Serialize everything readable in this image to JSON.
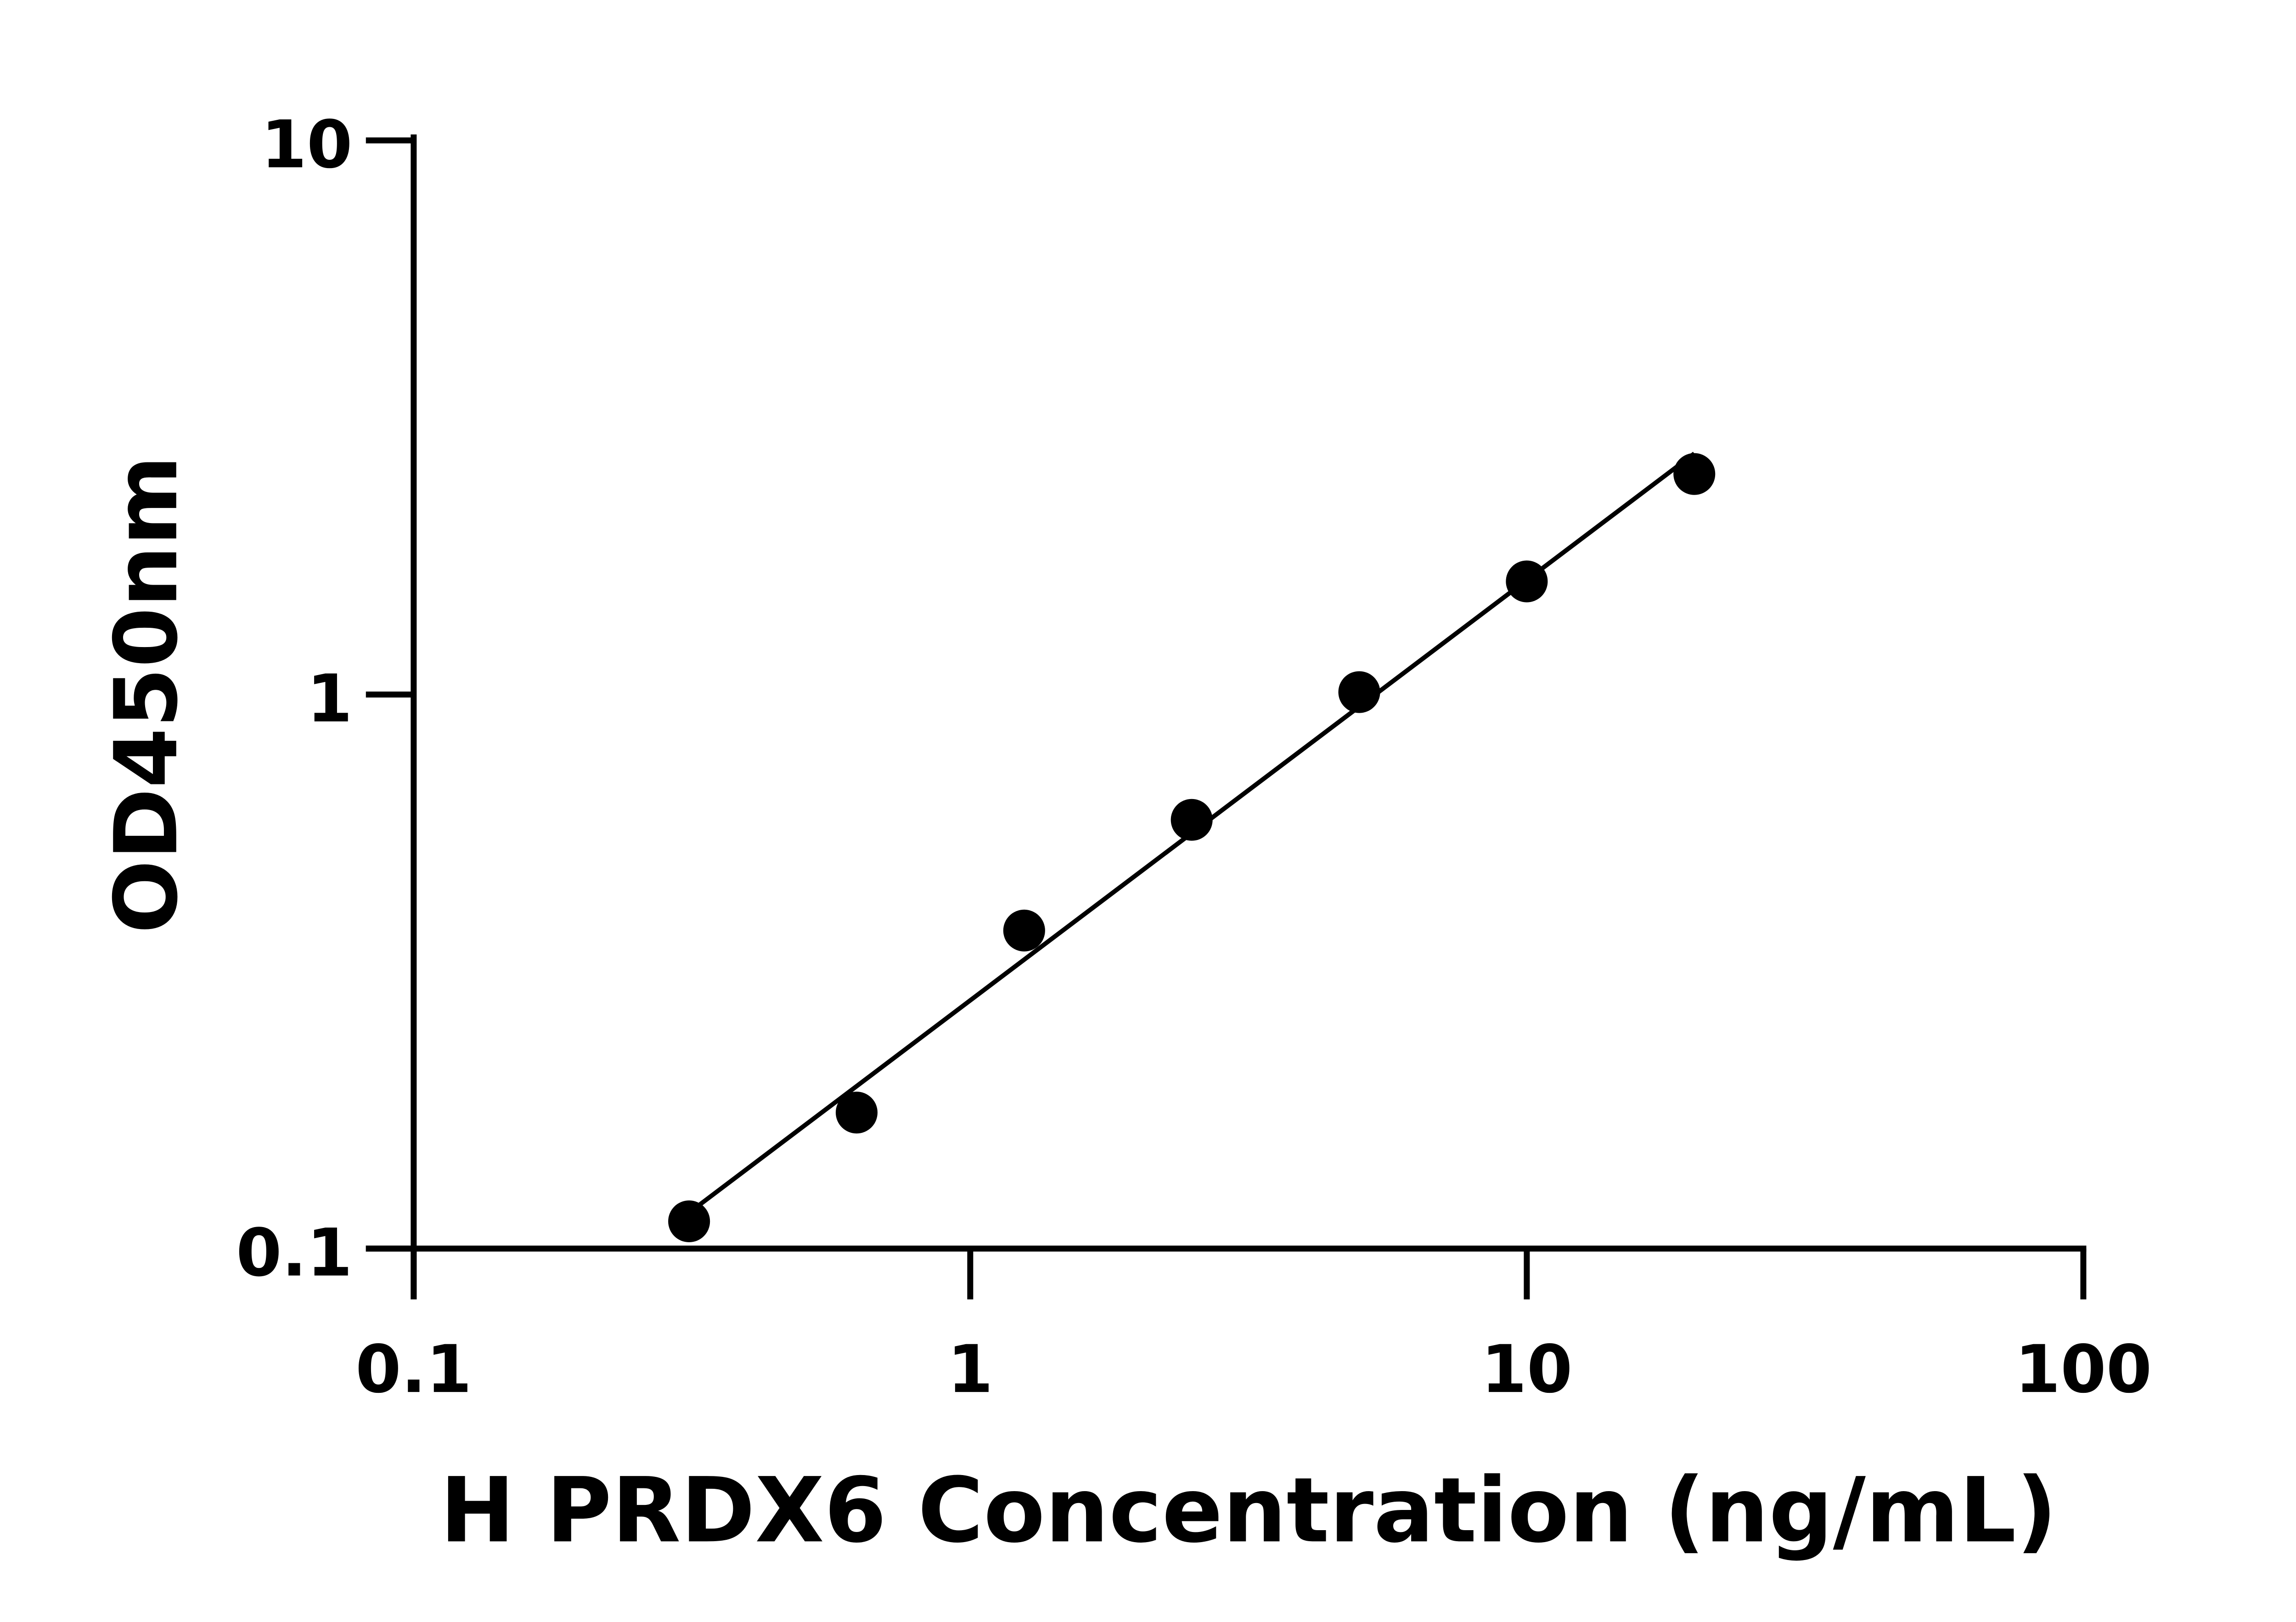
{
  "chart_data": {
    "type": "scatter",
    "title": "",
    "xlabel": "H PRDX6 Concentration (ng/mL)",
    "ylabel": "OD450nm",
    "xscale": "log",
    "yscale": "log",
    "xlim": [
      0.1,
      100
    ],
    "ylim": [
      0.1,
      10
    ],
    "xticks": [
      "0.1",
      "1",
      "10",
      "100"
    ],
    "yticks": [
      "0.1",
      "1",
      "10"
    ],
    "grid": false,
    "legend": "none",
    "fit_line": true,
    "x": [
      0.3125,
      0.625,
      1.25,
      2.5,
      5,
      10,
      20
    ],
    "y": [
      0.112,
      0.176,
      0.375,
      0.594,
      1.01,
      1.6,
      2.5
    ],
    "marker_color": "#000000",
    "line_color": "#000000"
  }
}
